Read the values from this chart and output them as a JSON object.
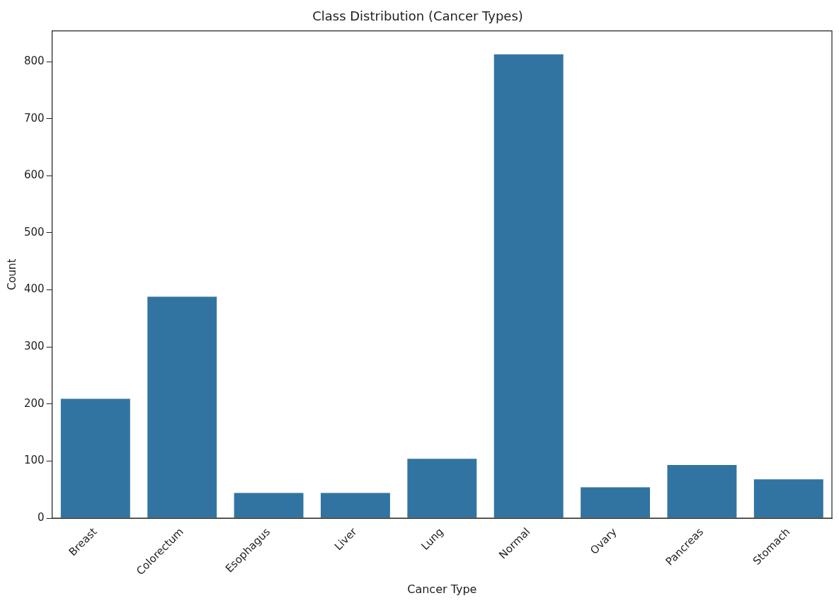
{
  "chart_data": {
    "type": "bar",
    "title": "Class Distribution (Cancer Types)",
    "xlabel": "Cancer Type",
    "ylabel": "Count",
    "categories": [
      "Breast",
      "Colorectum",
      "Esophagus",
      "Liver",
      "Lung",
      "Normal",
      "Ovary",
      "Pancreas",
      "Stomach"
    ],
    "values": [
      209,
      388,
      44,
      44,
      104,
      813,
      54,
      93,
      68
    ],
    "color": "#3274a1",
    "ylim": [
      0,
      854
    ],
    "yticks": [
      0,
      100,
      200,
      300,
      400,
      500,
      600,
      700,
      800
    ],
    "grid": false,
    "legend": false
  }
}
